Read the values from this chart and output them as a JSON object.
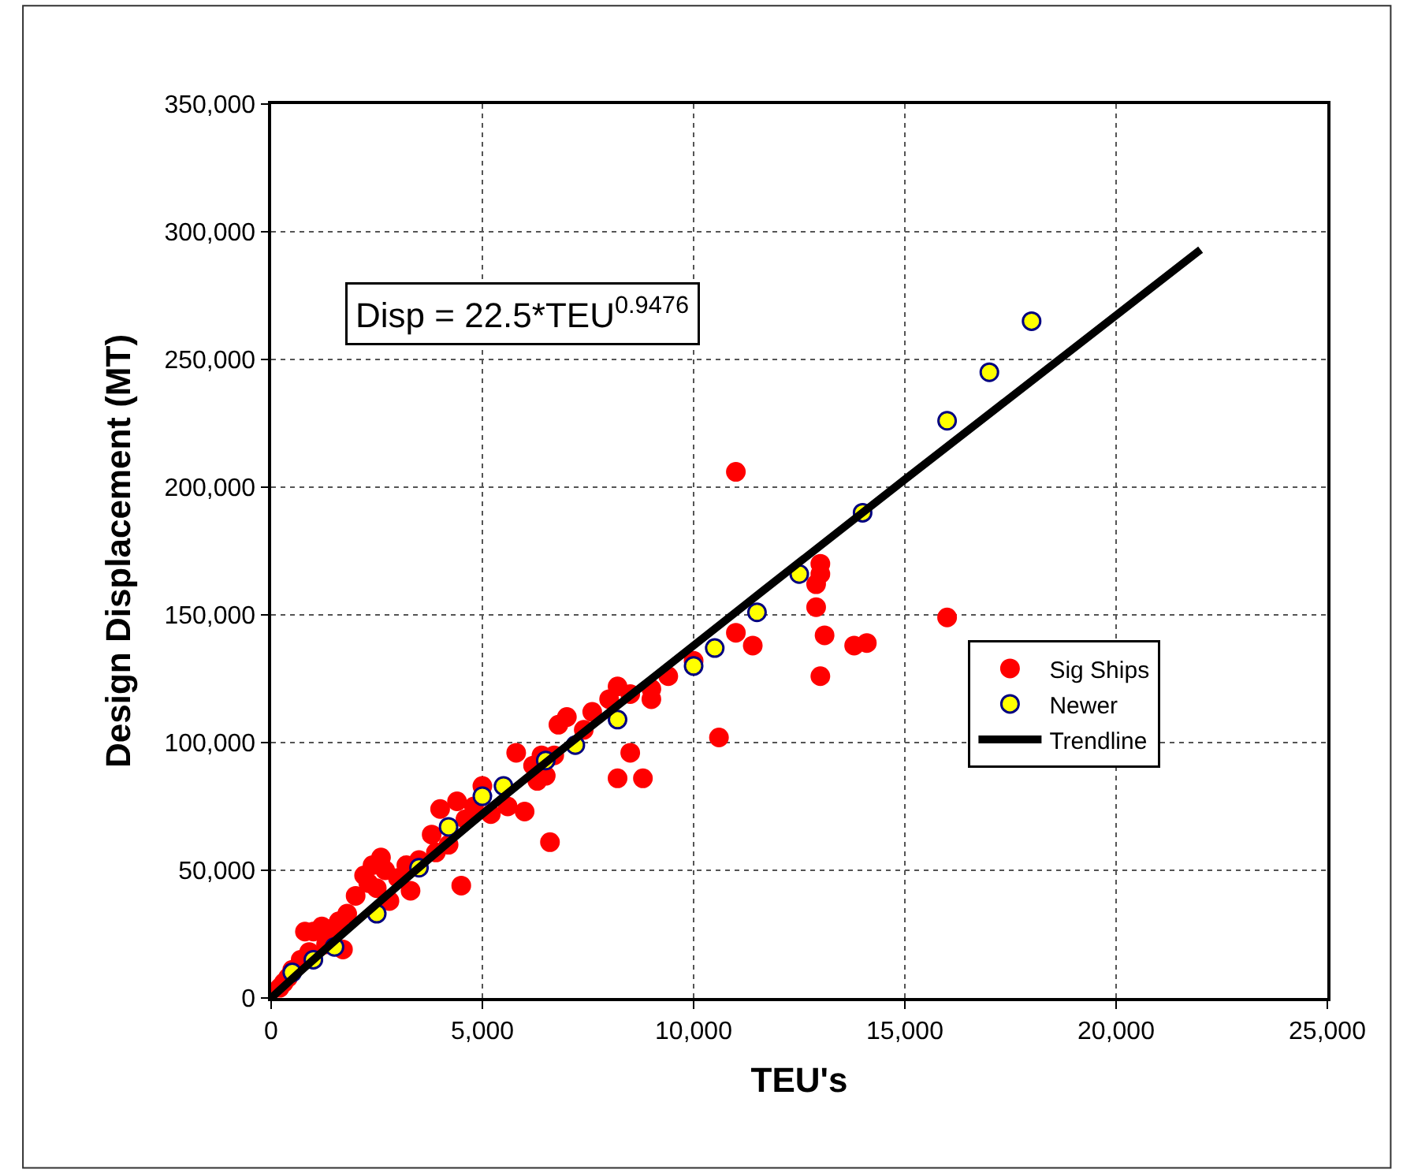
{
  "chart_data": {
    "type": "scatter",
    "xlabel": "TEU's",
    "ylabel": "Design Displacement (MT)",
    "annotations": [
      "Disp = 22.5*TEU$^{0.9476}$"
    ],
    "xlim": [
      0,
      25000
    ],
    "ylim": [
      0,
      350000
    ],
    "xticks": [
      0,
      {
        "value": 5000,
        "label": "5,000"
      },
      {
        "value": 10000,
        "label": "10,000"
      },
      {
        "value": 15000,
        "label": "15,000"
      },
      {
        "value": 20000,
        "label": "20,000"
      },
      {
        "value": 25000,
        "label": "25,000"
      }
    ],
    "yticks": [
      0,
      {
        "value": 50000,
        "label": "50,000"
      },
      {
        "value": 100000,
        "label": "100,000"
      },
      {
        "value": 150000,
        "label": "150,000"
      },
      {
        "value": 200000,
        "label": "200,000"
      },
      {
        "value": 250000,
        "label": "250,000"
      },
      {
        "value": 300000,
        "label": "300,000"
      },
      {
        "value": 350000,
        "label": "350,000"
      }
    ],
    "grid": true,
    "legend": "right",
    "marker": "circle",
    "series": [
      {
        "name": "Sig Ships",
        "color": "#ff0000",
        "x": [
          11000,
          16000,
          13000,
          13000,
          12900,
          13100,
          13000,
          13800,
          14100,
          11400,
          11000,
          10600,
          8500,
          8200,
          8800,
          6600,
          4500,
          9400,
          9000,
          8200,
          8500,
          7000,
          6800,
          6700,
          5800,
          6200,
          6000,
          5600,
          4800,
          4400,
          4000,
          3800,
          4200,
          3500,
          3200,
          2600,
          2400,
          2200,
          2500,
          2800,
          2000,
          1800,
          1600,
          1400,
          1200,
          1000,
          800,
          1700,
          300,
          200,
          2300,
          2700,
          3000,
          3300,
          1300,
          900,
          700,
          500,
          400,
          5200,
          4600,
          3900,
          5000,
          7600,
          7400,
          6400,
          6300,
          6500,
          8000,
          9000,
          12900,
          10000
        ],
        "values": [
          206000,
          149000,
          170000,
          166000,
          153000,
          142000,
          126000,
          138000,
          139000,
          138000,
          143000,
          102000,
          96000,
          86000,
          86000,
          61000,
          44000,
          126000,
          117000,
          122000,
          119000,
          110000,
          107000,
          95000,
          96000,
          91000,
          73000,
          75000,
          75000,
          77000,
          74000,
          64000,
          60000,
          54000,
          52000,
          55000,
          52000,
          48000,
          43000,
          38000,
          40000,
          33000,
          30000,
          27000,
          28000,
          26000,
          26000,
          19000,
          6000,
          4000,
          45000,
          50000,
          47000,
          42000,
          21000,
          18000,
          15000,
          11000,
          8000,
          72000,
          70000,
          57000,
          83000,
          112000,
          105000,
          95000,
          85000,
          87000,
          117000,
          121000,
          162000,
          132000
        ]
      },
      {
        "name": "Newer",
        "color": "#ffff00",
        "x": [
          500,
          1000,
          1500,
          2500,
          3500,
          4200,
          5000,
          5500,
          6500,
          7200,
          8200,
          10000,
          10500,
          11500,
          12500,
          14000,
          16000,
          17000,
          18000
        ],
        "values": [
          10000,
          15000,
          20000,
          33000,
          51000,
          67000,
          79000,
          83000,
          93000,
          99000,
          109000,
          130000,
          137000,
          151000,
          166000,
          190000,
          226000,
          245000,
          265000
        ]
      },
      {
        "name": "Trendline",
        "color": "#000000",
        "type": "line",
        "marker": "none",
        "x": [
          0,
          1000,
          5000,
          10000,
          15000,
          22000
        ],
        "values": [
          0,
          15000,
          72000,
          138000,
          203000,
          293000
        ]
      }
    ]
  }
}
